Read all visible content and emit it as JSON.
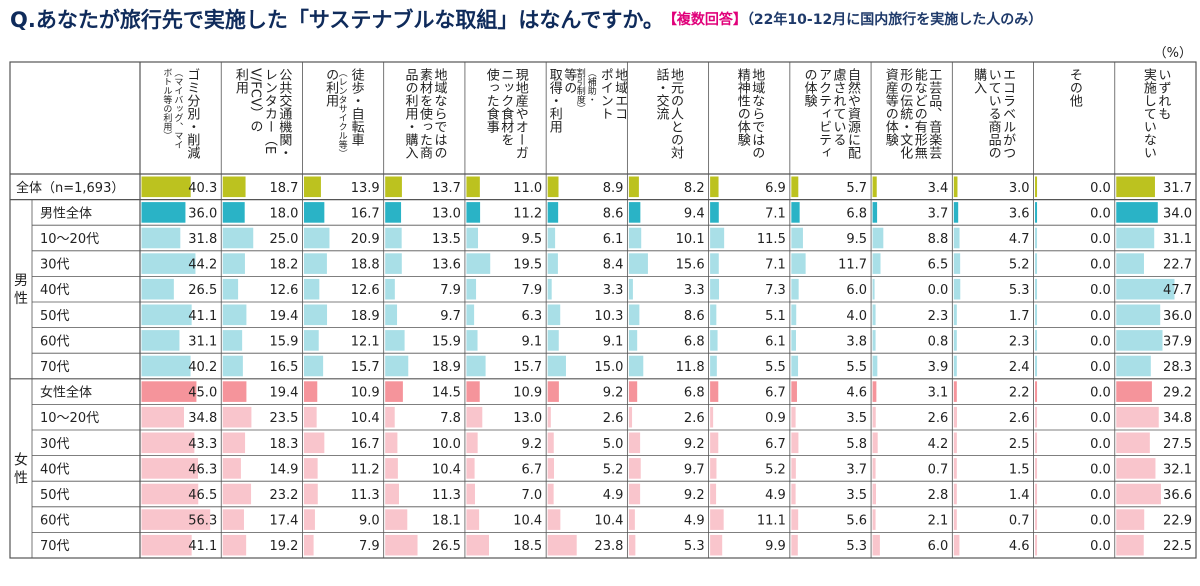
{
  "title": {
    "question": "Q.あなたが旅行先で実施した「サステナブルな取組」はなんですか。",
    "multi": "【複数回答】",
    "scope": "（22年10-12月に国内旅行を実施した人のみ）"
  },
  "unit": "（%）",
  "colors": {
    "total": "#bcc21f",
    "male_total": "#2ab3c6",
    "male": "#a9dfe7",
    "female_total": "#f5949b",
    "female": "#f9c5cc",
    "grid": "#555555"
  },
  "chart_data": {
    "type": "table",
    "columns": [
      {
        "main": [
          "ゴミ分別・削減"
        ],
        "small": [
          "（マイバッグ、マイ",
          "ボトル等の利用）"
        ]
      },
      {
        "main": [
          "公共交通機関・",
          "レンタカー（E",
          "V/FCV）の",
          "利用"
        ],
        "small": []
      },
      {
        "main": [
          "徒歩・自転車"
        ],
        "small": [
          "（レンタサイクル等）"
        ],
        "tail": [
          "の利用"
        ]
      },
      {
        "main": [
          "地域ならではの",
          "素材を使った商",
          "品の利用・購入"
        ],
        "small": []
      },
      {
        "main": [
          "現地産やオーガ",
          "ニック食材を",
          "使った食事"
        ],
        "small": []
      },
      {
        "main": [
          "地域エコ",
          "ポイント"
        ],
        "small": [
          "（補助・",
          "割引制度）"
        ],
        "tail": [
          "等の",
          "取得・利用"
        ]
      },
      {
        "main": [
          "地元の人との対",
          "話・交流"
        ],
        "small": []
      },
      {
        "main": [
          "地域ならではの",
          "精神性の体験"
        ],
        "small": []
      },
      {
        "main": [
          "自然や資源に配",
          "慮されている",
          "アクティビティ",
          "の体験"
        ],
        "small": []
      },
      {
        "main": [
          "工芸品、音楽芸",
          "能などの有形無",
          "形の伝統・文化",
          "資産等の体験"
        ],
        "small": []
      },
      {
        "main": [
          "エコラベルがつ",
          "いている商品の",
          "購入"
        ],
        "small": []
      },
      {
        "main": [
          "その他"
        ],
        "small": []
      },
      {
        "main": [
          "いずれも",
          "実施していない"
        ],
        "small": []
      }
    ],
    "groups": [
      {
        "label": "男性",
        "rows": [
          1,
          7
        ]
      },
      {
        "label": "女性",
        "rows": [
          8,
          14
        ]
      }
    ],
    "rows": [
      {
        "label": "全体（n=1,693）",
        "kind": "total",
        "values": [
          40.3,
          18.7,
          13.9,
          13.7,
          11.0,
          8.9,
          8.2,
          6.9,
          5.7,
          3.4,
          3.0,
          0.0,
          31.7
        ]
      },
      {
        "label": "男性全体",
        "kind": "male_total",
        "values": [
          36.0,
          18.0,
          16.7,
          13.0,
          11.2,
          8.6,
          9.4,
          7.1,
          6.8,
          3.7,
          3.6,
          0.0,
          34.0
        ]
      },
      {
        "label": "10～20代",
        "kind": "male",
        "values": [
          31.8,
          25.0,
          20.9,
          13.5,
          9.5,
          6.1,
          10.1,
          11.5,
          9.5,
          8.8,
          4.7,
          0.0,
          31.1
        ]
      },
      {
        "label": "30代",
        "kind": "male",
        "values": [
          44.2,
          18.2,
          18.8,
          13.6,
          19.5,
          8.4,
          15.6,
          7.1,
          11.7,
          6.5,
          5.2,
          0.0,
          22.7
        ]
      },
      {
        "label": "40代",
        "kind": "male",
        "values": [
          26.5,
          12.6,
          12.6,
          7.9,
          7.9,
          3.3,
          3.3,
          7.3,
          6.0,
          0.0,
          5.3,
          0.0,
          47.7
        ]
      },
      {
        "label": "50代",
        "kind": "male",
        "values": [
          41.1,
          19.4,
          18.9,
          9.7,
          6.3,
          10.3,
          8.6,
          5.1,
          4.0,
          2.3,
          1.7,
          0.0,
          36.0
        ]
      },
      {
        "label": "60代",
        "kind": "male",
        "values": [
          31.1,
          15.9,
          12.1,
          15.9,
          9.1,
          9.1,
          6.8,
          6.1,
          3.8,
          0.8,
          2.3,
          0.0,
          37.9
        ]
      },
      {
        "label": "70代",
        "kind": "male",
        "values": [
          40.2,
          16.5,
          15.7,
          18.9,
          15.7,
          15.0,
          11.8,
          5.5,
          5.5,
          3.9,
          2.4,
          0.0,
          28.3
        ]
      },
      {
        "label": "女性全体",
        "kind": "female_total",
        "values": [
          45.0,
          19.4,
          10.9,
          14.5,
          10.9,
          9.2,
          6.8,
          6.7,
          4.6,
          3.1,
          2.2,
          0.0,
          29.2
        ]
      },
      {
        "label": "10～20代",
        "kind": "female",
        "values": [
          34.8,
          23.5,
          10.4,
          7.8,
          13.0,
          2.6,
          2.6,
          0.9,
          3.5,
          2.6,
          2.6,
          0.0,
          34.8
        ]
      },
      {
        "label": "30代",
        "kind": "female",
        "values": [
          43.3,
          18.3,
          16.7,
          10.0,
          9.2,
          5.0,
          9.2,
          6.7,
          5.8,
          4.2,
          2.5,
          0.0,
          27.5
        ]
      },
      {
        "label": "40代",
        "kind": "female",
        "values": [
          46.3,
          14.9,
          11.2,
          10.4,
          6.7,
          5.2,
          9.7,
          5.2,
          3.7,
          0.7,
          1.5,
          0.0,
          32.1
        ]
      },
      {
        "label": "50代",
        "kind": "female",
        "values": [
          46.5,
          23.2,
          11.3,
          11.3,
          7.0,
          4.9,
          9.2,
          4.9,
          3.5,
          2.8,
          1.4,
          0.0,
          36.6
        ]
      },
      {
        "label": "60代",
        "kind": "female",
        "values": [
          56.3,
          17.4,
          9.0,
          18.1,
          10.4,
          10.4,
          4.9,
          11.1,
          5.6,
          2.1,
          0.7,
          0.0,
          22.9
        ]
      },
      {
        "label": "70代",
        "kind": "female",
        "values": [
          41.1,
          19.2,
          7.9,
          26.5,
          18.5,
          23.8,
          5.3,
          9.9,
          5.3,
          6.0,
          4.6,
          0.0,
          22.5
        ]
      }
    ],
    "bar_scale_max": 60
  }
}
